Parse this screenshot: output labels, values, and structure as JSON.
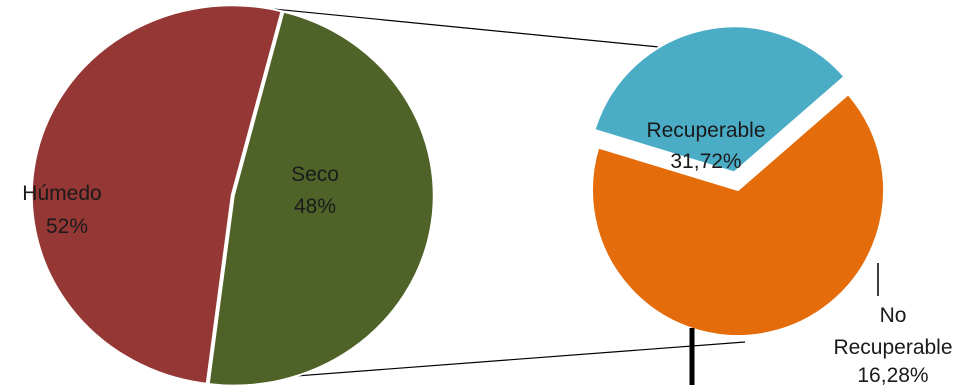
{
  "chart_data": [
    {
      "type": "pie",
      "slices": [
        {
          "label": "Húmedo",
          "value_label": "52%",
          "value": 52,
          "color": "#953735"
        },
        {
          "label": "Seco",
          "value_label": "48%",
          "value": 48,
          "color": "#4f6228"
        }
      ]
    },
    {
      "type": "pie",
      "slices": [
        {
          "label": "Recuperable",
          "value_label": "31,72%",
          "value": 31.72,
          "color": "#e46c0a"
        },
        {
          "label_line1": "No",
          "label_line2": "Recuperable",
          "value_label": "16,28%",
          "value": 16.28,
          "color": "#4bacc6"
        }
      ]
    }
  ]
}
